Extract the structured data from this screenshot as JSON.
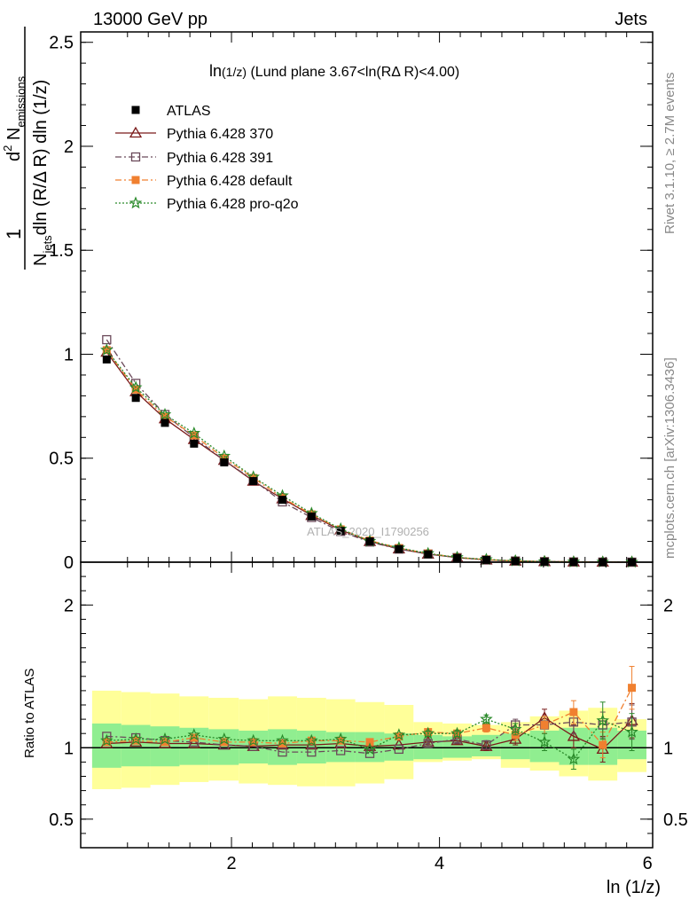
{
  "header": {
    "left": "13000 GeV pp",
    "right": "Jets"
  },
  "side_labels": {
    "rivet": "Rivet 3.1.10, ≥ 2.7M events",
    "mcplots": "mcplots.cern.ch [arXiv:1306.3436]"
  },
  "watermark": "ATLAS_2020_I1790256",
  "colors": {
    "ATLAS": "#000000",
    "p370": "#7a1a1a",
    "p391": "#6b4a5a",
    "pdefault": "#f08030",
    "pq2o": "#2a8a2a",
    "band_inner": "#90ee90",
    "band_outer": "#ffff99"
  },
  "chart_data": [
    {
      "type": "line",
      "title": "ln(1/z) (Lund plane 3.67<ln(RΔ R)<4.00)",
      "title_parts": {
        "main": "ln",
        "sub": "(1/z)",
        "rest": " (Lund plane 3.67<ln(RΔ R)<4.00)"
      },
      "ylabel": "1/N_jets d²N_emissions / dln(R/ΔR) dln(1/z)",
      "ylabel_parts": {
        "frac_one": "1",
        "num_d": "d",
        "num_sup": "2",
        "num_n": " N",
        "num_sub": "emissions",
        "den_n": "N",
        "den_sub": "jets",
        "den_rest": "dln (R/Δ R) dln (1/z)"
      },
      "xlim": [
        0.55,
        6.05
      ],
      "ylim": [
        0,
        2.55
      ],
      "yticks": [
        0,
        0.5,
        1,
        1.5,
        2,
        2.5
      ],
      "ytick_labels": [
        "0",
        "0.5",
        "1",
        "1.5",
        "2",
        "2.5"
      ],
      "x": [
        0.8,
        1.08,
        1.36,
        1.64,
        1.93,
        2.21,
        2.49,
        2.77,
        3.05,
        3.33,
        3.61,
        3.89,
        4.17,
        4.45,
        4.73,
        5.01,
        5.29,
        5.57,
        5.85
      ],
      "series": [
        {
          "name": "ATLAS",
          "key": "ATLAS",
          "marker": "square-filled",
          "line": "none",
          "values": [
            0.975,
            0.79,
            0.67,
            0.57,
            0.48,
            0.39,
            0.3,
            0.22,
            0.15,
            0.1,
            0.063,
            0.038,
            0.021,
            0.011,
            0.0055,
            0.0025,
            0.0012,
            0.0005,
            0.0002
          ]
        },
        {
          "name": "Pythia 6.428 370",
          "key": "p370",
          "marker": "triangle-open",
          "line": "solid",
          "values": [
            1.01,
            0.82,
            0.69,
            0.59,
            0.49,
            0.39,
            0.305,
            0.225,
            0.155,
            0.1,
            0.064,
            0.039,
            0.022,
            0.011,
            0.0057,
            0.003,
            0.0013,
            0.0005,
            0.0002
          ]
        },
        {
          "name": "Pythia 6.428 391",
          "key": "p391",
          "marker": "square-open",
          "line": "dashdot",
          "values": [
            1.07,
            0.86,
            0.71,
            0.6,
            0.49,
            0.395,
            0.29,
            0.215,
            0.148,
            0.097,
            0.063,
            0.039,
            0.022,
            0.011,
            0.0058,
            0.0029,
            0.0014,
            0.0005,
            0.0002
          ]
        },
        {
          "name": "Pythia 6.428 default",
          "key": "pdefault",
          "marker": "square-filled",
          "line": "dashdot",
          "values": [
            1.02,
            0.83,
            0.7,
            0.61,
            0.5,
            0.405,
            0.31,
            0.23,
            0.158,
            0.104,
            0.068,
            0.042,
            0.023,
            0.0125,
            0.006,
            0.0029,
            0.0015,
            0.0005,
            0.00028
          ]
        },
        {
          "name": "Pythia 6.428 pro-q2o",
          "key": "pq2o",
          "marker": "star-open",
          "line": "dotted",
          "values": [
            1.02,
            0.84,
            0.71,
            0.62,
            0.51,
            0.41,
            0.32,
            0.235,
            0.16,
            0.101,
            0.069,
            0.042,
            0.023,
            0.0132,
            0.0062,
            0.0029,
            0.0011,
            0.0006,
            0.00022
          ]
        }
      ],
      "legend_position": "top-left"
    },
    {
      "type": "line",
      "ylabel": "Ratio to ATLAS",
      "xlabel": "ln (1/z)",
      "xlim": [
        0.55,
        6.05
      ],
      "ylim": [
        0.3,
        2.3
      ],
      "yticks": [
        0.5,
        1,
        2
      ],
      "ytick_labels": [
        "0.5",
        "1",
        "2"
      ],
      "xticks": [
        2,
        4,
        6
      ],
      "xtick_labels": [
        "2",
        "4",
        "6"
      ],
      "x": [
        0.8,
        1.08,
        1.36,
        1.64,
        1.93,
        2.21,
        2.49,
        2.77,
        3.05,
        3.33,
        3.61,
        3.89,
        4.17,
        4.45,
        4.73,
        5.01,
        5.29,
        5.57,
        5.85
      ],
      "bin_edges": [
        0.66,
        0.94,
        1.22,
        1.5,
        1.78,
        2.07,
        2.35,
        2.63,
        2.91,
        3.19,
        3.47,
        3.75,
        4.03,
        4.31,
        4.59,
        4.87,
        5.15,
        5.43,
        5.71,
        5.99
      ],
      "band_inner": {
        "low": [
          0.86,
          0.87,
          0.87,
          0.88,
          0.88,
          0.89,
          0.88,
          0.89,
          0.9,
          0.9,
          0.91,
          0.92,
          0.93,
          0.94,
          0.92,
          0.9,
          0.88,
          0.88,
          0.92
        ],
        "high": [
          1.17,
          1.16,
          1.15,
          1.14,
          1.13,
          1.12,
          1.13,
          1.12,
          1.11,
          1.11,
          1.1,
          1.09,
          1.08,
          1.09,
          1.1,
          1.12,
          1.14,
          1.14,
          1.12
        ]
      },
      "band_outer": {
        "low": [
          0.71,
          0.72,
          0.74,
          0.76,
          0.77,
          0.75,
          0.74,
          0.73,
          0.73,
          0.75,
          0.78,
          0.9,
          0.91,
          0.92,
          0.86,
          0.84,
          0.8,
          0.77,
          0.83
        ],
        "high": [
          1.4,
          1.39,
          1.38,
          1.36,
          1.35,
          1.34,
          1.36,
          1.35,
          1.34,
          1.32,
          1.3,
          1.18,
          1.17,
          1.16,
          1.18,
          1.22,
          1.26,
          1.28,
          1.2
        ]
      },
      "series": [
        {
          "name": "Pythia 6.428 370",
          "key": "p370",
          "marker": "triangle-open",
          "line": "solid",
          "values": [
            1.03,
            1.04,
            1.03,
            1.03,
            1.02,
            1.01,
            1.02,
            1.02,
            1.03,
            1.01,
            1.02,
            1.04,
            1.05,
            1.01,
            1.06,
            1.21,
            1.08,
            0.99,
            1.19
          ],
          "errors": [
            0.005,
            0.005,
            0.005,
            0.005,
            0.006,
            0.006,
            0.007,
            0.008,
            0.01,
            0.012,
            0.014,
            0.018,
            0.022,
            0.03,
            0.04,
            0.06,
            0.08,
            0.09,
            0.12
          ]
        },
        {
          "name": "Pythia 6.428 391",
          "key": "p391",
          "marker": "square-open",
          "line": "dashdot",
          "values": [
            1.08,
            1.07,
            1.05,
            1.04,
            1.02,
            1.01,
            0.97,
            0.97,
            0.98,
            0.96,
            0.99,
            1.03,
            1.06,
            1.02,
            1.16,
            1.16,
            1.18,
            1.16,
            1.18
          ],
          "errors": [
            0.005,
            0.005,
            0.005,
            0.005,
            0.006,
            0.006,
            0.007,
            0.008,
            0.01,
            0.012,
            0.014,
            0.018,
            0.022,
            0.03,
            0.04,
            0.06,
            0.08,
            0.09,
            0.12
          ]
        },
        {
          "name": "Pythia 6.428 default",
          "key": "pdefault",
          "marker": "square-filled",
          "line": "dashdot",
          "values": [
            1.04,
            1.05,
            1.04,
            1.07,
            1.04,
            1.04,
            1.03,
            1.05,
            1.05,
            1.04,
            1.08,
            1.11,
            1.1,
            1.14,
            1.09,
            1.16,
            1.25,
            1.02,
            1.42
          ],
          "errors": [
            0.005,
            0.005,
            0.005,
            0.005,
            0.006,
            0.006,
            0.007,
            0.008,
            0.01,
            0.012,
            0.014,
            0.018,
            0.022,
            0.03,
            0.04,
            0.06,
            0.08,
            0.09,
            0.15
          ]
        },
        {
          "name": "Pythia 6.428 pro-q2o",
          "key": "pq2o",
          "marker": "star-open",
          "line": "dotted",
          "values": [
            1.05,
            1.06,
            1.06,
            1.09,
            1.06,
            1.05,
            1.05,
            1.05,
            1.06,
            0.99,
            1.09,
            1.1,
            1.1,
            1.2,
            1.13,
            1.04,
            0.92,
            1.19,
            1.11
          ],
          "errors": [
            0.005,
            0.005,
            0.005,
            0.005,
            0.006,
            0.006,
            0.007,
            0.008,
            0.01,
            0.012,
            0.014,
            0.018,
            0.022,
            0.03,
            0.04,
            0.06,
            0.07,
            0.13,
            0.13
          ]
        }
      ]
    }
  ]
}
